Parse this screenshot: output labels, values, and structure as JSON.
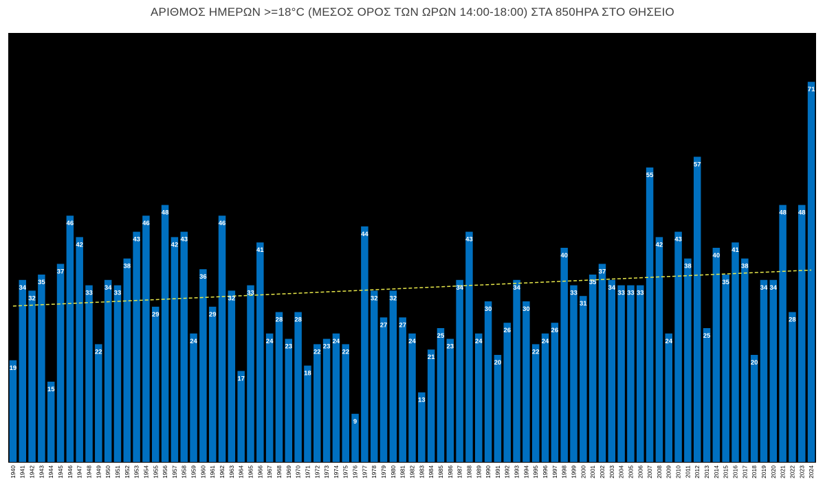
{
  "chart_data": {
    "type": "bar",
    "title": "ΑΡΙΘΜΟΣ ΗΜΕΡΩΝ >=18°C (ΜΕΣΟΣ ΟΡΟΣ ΤΩΝ ΩΡΩΝ 14:00-18:00) ΣΤΑ 850ΗΡΑ ΣΤΟ ΘΗΣΕΙΟ",
    "xlabel": "",
    "ylabel": "",
    "categories": [
      "1940",
      "1941",
      "1942",
      "1943",
      "1944",
      "1945",
      "1946",
      "1947",
      "1948",
      "1949",
      "1950",
      "1951",
      "1952",
      "1953",
      "1954",
      "1955",
      "1956",
      "1957",
      "1958",
      "1959",
      "1960",
      "1961",
      "1962",
      "1963",
      "1964",
      "1965",
      "1966",
      "1967",
      "1968",
      "1969",
      "1970",
      "1971",
      "1972",
      "1973",
      "1974",
      "1975",
      "1976",
      "1977",
      "1978",
      "1979",
      "1980",
      "1981",
      "1982",
      "1983",
      "1984",
      "1985",
      "1986",
      "1987",
      "1988",
      "1989",
      "1990",
      "1991",
      "1992",
      "1993",
      "1994",
      "1995",
      "1996",
      "1997",
      "1998",
      "1999",
      "2000",
      "2001",
      "2002",
      "2003",
      "2004",
      "2005",
      "2006",
      "2007",
      "2008",
      "2009",
      "2010",
      "2011",
      "2012",
      "2013",
      "2014",
      "2015",
      "2016",
      "2017",
      "2018",
      "2019",
      "2020",
      "2021",
      "2022",
      "2023",
      "2024"
    ],
    "values": [
      19,
      34,
      32,
      35,
      15,
      37,
      46,
      42,
      33,
      22,
      34,
      33,
      38,
      43,
      46,
      29,
      48,
      42,
      43,
      24,
      36,
      29,
      46,
      32,
      17,
      33,
      41,
      24,
      28,
      23,
      28,
      18,
      22,
      23,
      24,
      22,
      9,
      44,
      32,
      27,
      32,
      27,
      24,
      13,
      21,
      25,
      23,
      34,
      43,
      24,
      30,
      20,
      26,
      34,
      30,
      22,
      24,
      26,
      40,
      33,
      31,
      35,
      37,
      34,
      33,
      33,
      33,
      55,
      42,
      24,
      43,
      38,
      57,
      25,
      40,
      35,
      41,
      38,
      20,
      34,
      34,
      48,
      28,
      48,
      71
    ],
    "ylim": [
      0,
      71
    ],
    "trendline": {
      "type": "linear",
      "style": "dashed",
      "color": "#e8e84a"
    },
    "colors": {
      "bar": "#0070c0",
      "plot_background": "#000000",
      "labels": "#ffffff"
    },
    "grid": false,
    "legend": "none"
  }
}
